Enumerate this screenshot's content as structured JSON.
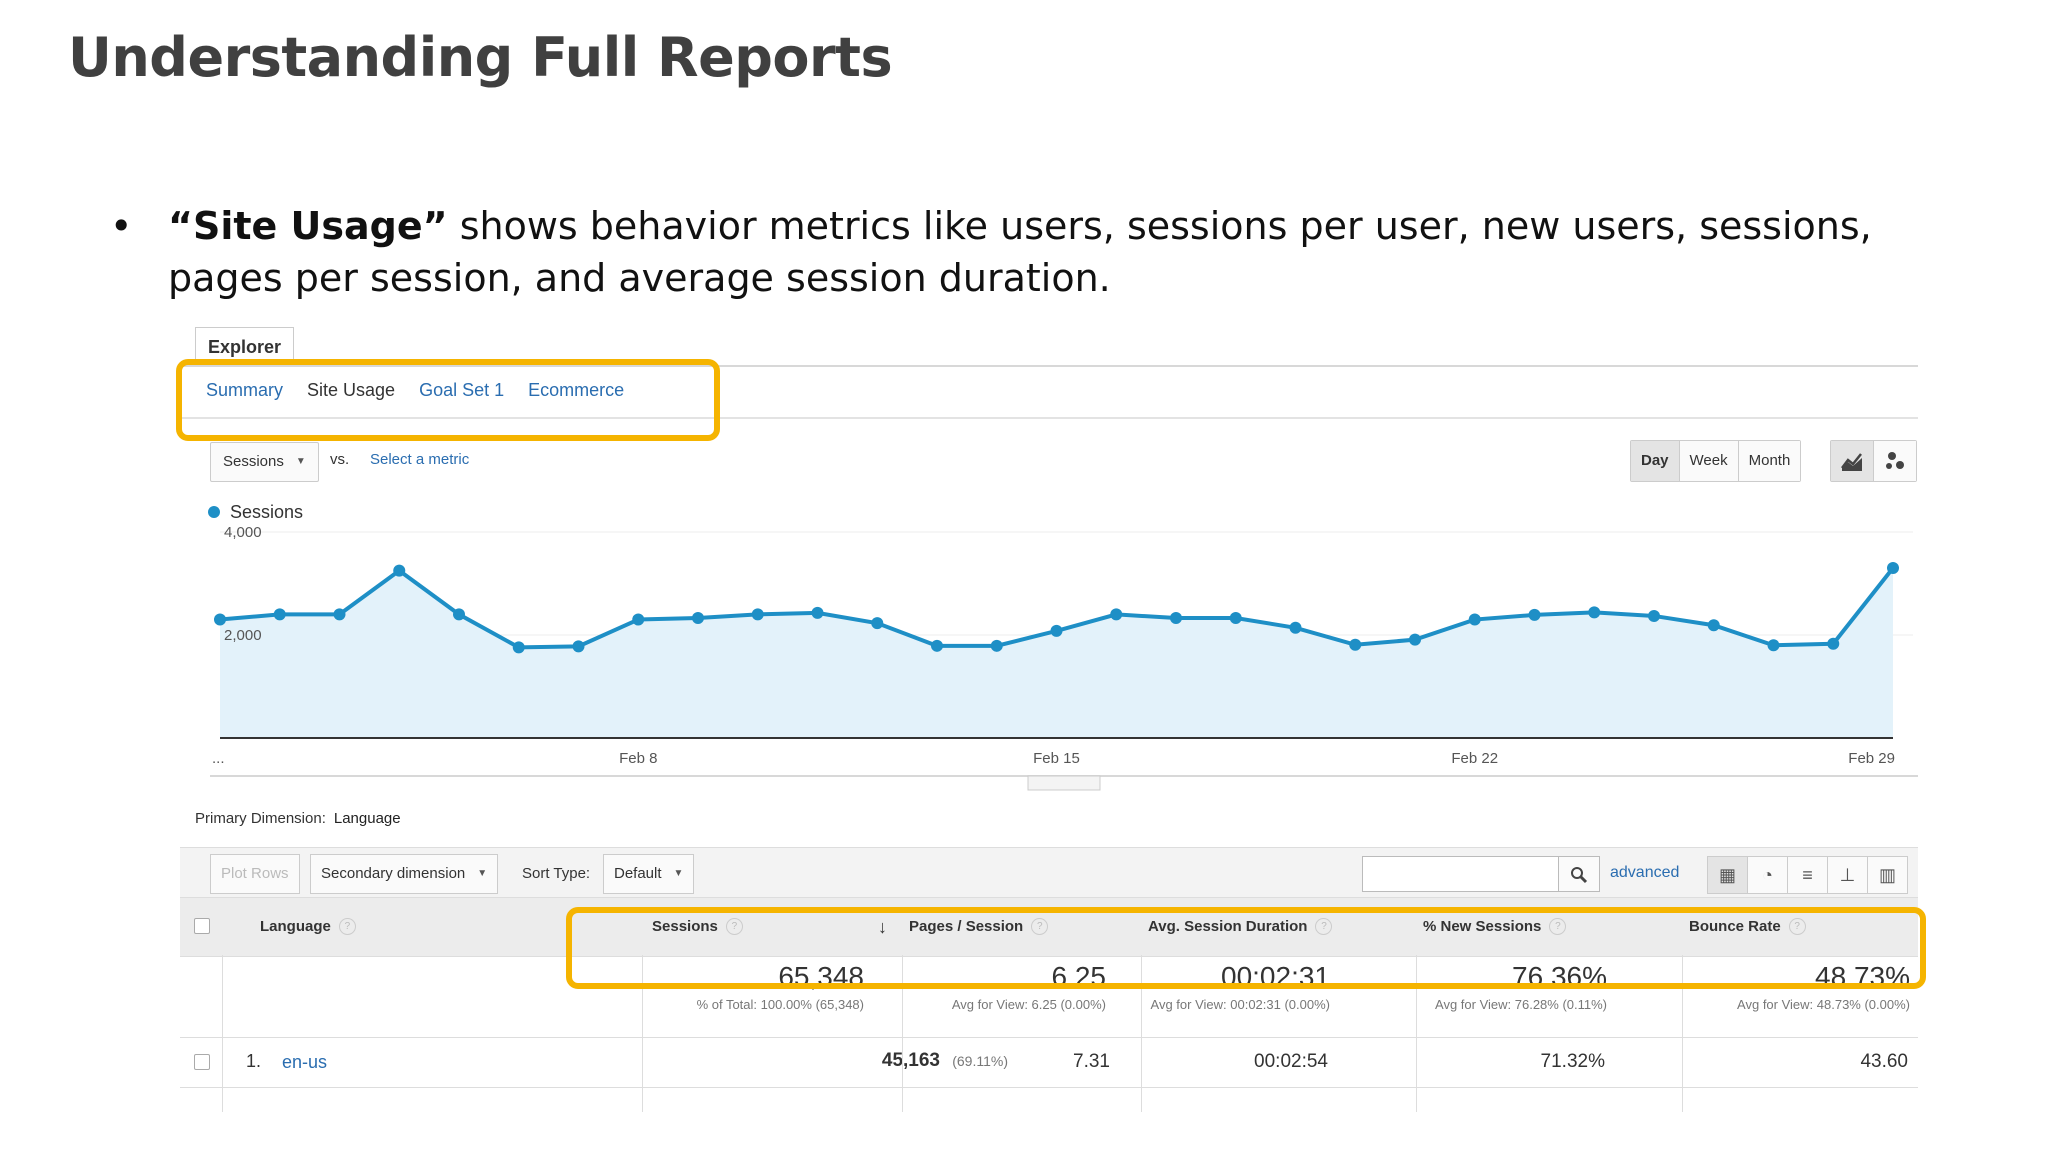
{
  "slide": {
    "title": "Understanding Full Reports",
    "bullet_bold": "“Site Usage”",
    "bullet_rest": " shows behavior metrics like users, sessions per user, new users, sessions, pages per session, and average session duration."
  },
  "explorer": {
    "tab_label": "Explorer",
    "subtabs": [
      "Summary",
      "Site Usage",
      "Goal Set 1",
      "Ecommerce"
    ],
    "active_subtab": "Site Usage",
    "metric_select": "Sessions",
    "vs_label": "vs.",
    "select_metric_link": "Select a metric",
    "period_buttons": [
      "Day",
      "Week",
      "Month"
    ],
    "active_period": "Day",
    "chart_type_icons": [
      "line-chart-icon",
      "motion-chart-icon"
    ]
  },
  "chart_data": {
    "type": "area",
    "legend": [
      "Sessions"
    ],
    "series": [
      {
        "name": "Sessions",
        "color": "#1e8fc6",
        "values": [
          2300,
          2400,
          2400,
          3250,
          2400,
          1760,
          1780,
          2300,
          2330,
          2400,
          2430,
          2230,
          1790,
          1790,
          2080,
          2400,
          2330,
          2330,
          2140,
          1810,
          1910,
          2300,
          2390,
          2440,
          2370,
          2190,
          1800,
          1830,
          3300
        ]
      }
    ],
    "x_tick_labels": [
      "...",
      "Feb 8",
      "Feb 15",
      "Feb 22",
      "Feb 29"
    ],
    "y_tick_labels": [
      "4,000",
      "2,000"
    ],
    "ylim": [
      0,
      4000
    ],
    "grid": true
  },
  "table": {
    "primary_dimension_label": "Primary Dimension:",
    "primary_dimension_value": "Language",
    "plot_rows": "Plot Rows",
    "secondary_dimension": "Secondary dimension",
    "sort_type_label": "Sort Type:",
    "sort_type_value": "Default",
    "advanced_link": "advanced",
    "headers": [
      "Language",
      "Sessions",
      "Pages / Session",
      "Avg. Session Duration",
      "% New Sessions",
      "Bounce Rate"
    ],
    "totals": [
      {
        "value": "65,348",
        "sub": "% of Total: 100.00% (65,348)"
      },
      {
        "value": "6.25",
        "sub": "Avg for View: 6.25 (0.00%)"
      },
      {
        "value": "00:02:31",
        "sub": "Avg for View: 00:02:31 (0.00%)"
      },
      {
        "value": "76.36%",
        "sub": "Avg for View: 76.28% (0.11%)"
      },
      {
        "value": "48.73%",
        "sub": "Avg for View: 48.73% (0.00%)"
      }
    ],
    "rows": [
      {
        "index": "1.",
        "language": "en-us",
        "sessions": "45,163",
        "sessions_pct": "(69.11%)",
        "pages_session": "7.31",
        "avg_duration": "00:02:54",
        "new_sessions": "71.32%",
        "bounce_rate": "43.60"
      }
    ]
  }
}
